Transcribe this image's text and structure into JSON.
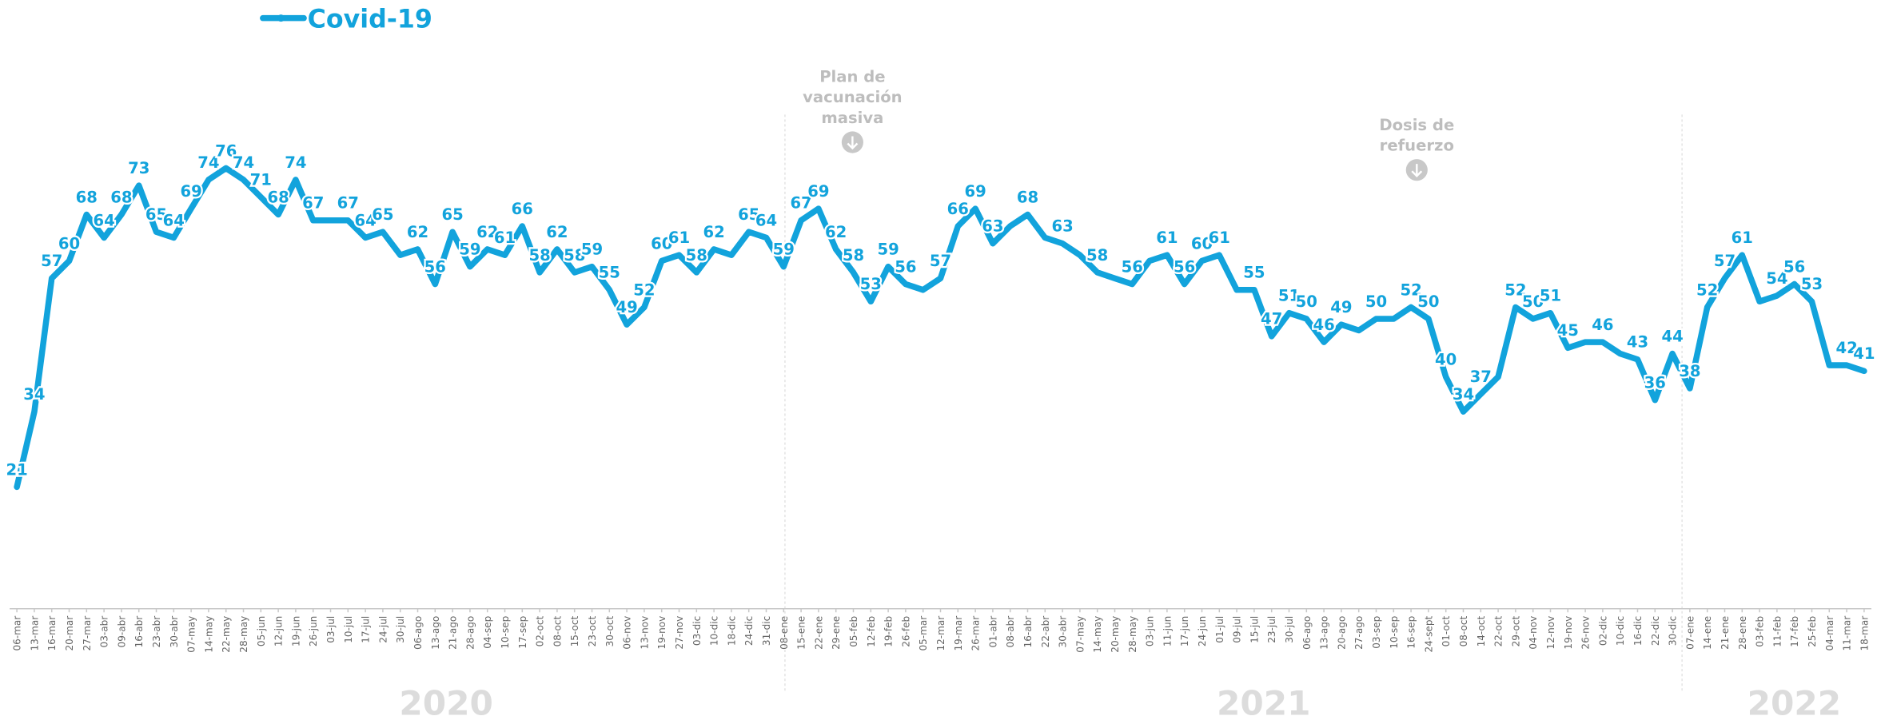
{
  "chart_data": {
    "type": "line",
    "annotations": [
      [
        "Plan de",
        "vacunación",
        "masiva"
      ],
      [
        "Dosis de",
        "refuerzo"
      ]
    ],
    "years": [
      "2020",
      "2021",
      "2022"
    ],
    "categories": [
      "06-mar",
      "13-mar",
      "16-mar",
      "20-mar",
      "27-mar",
      "03-abr",
      "09-abr",
      "16-abr",
      "23-abr",
      "30-abr",
      "07-may",
      "14-may",
      "22-may",
      "28-may",
      "05-jun",
      "12-jun",
      "19-jun",
      "26-jun",
      "03-jul",
      "10-jul",
      "17-jul",
      "24-jul",
      "30-jul",
      "06-ago",
      "13-ago",
      "21-ago",
      "28-ago",
      "04-sep",
      "10-sep",
      "17-sep",
      "02-oct",
      "08-oct",
      "15-oct",
      "23-oct",
      "30-oct",
      "06-nov",
      "13-nov",
      "19-nov",
      "27-nov",
      "03-dic",
      "10-dic",
      "18-dic",
      "24-dic",
      "31-dic",
      "08-ene",
      "15-ene",
      "22-ene",
      "29-ene",
      "05-feb",
      "12-feb",
      "19-feb",
      "26-feb",
      "05-mar",
      "12-mar",
      "19-mar",
      "26-mar",
      "01-abr",
      "08-abr",
      "16-abr",
      "22-abr",
      "30-abr",
      "07-may",
      "14-may",
      "20-may",
      "28-may",
      "03-jun",
      "11-jun",
      "17-jun",
      "24-jun",
      "01-jul",
      "09-jul",
      "15-jul",
      "23-jul",
      "30-jul",
      "06-ago",
      "13-ago",
      "20-ago",
      "27-ago",
      "03-sep",
      "10-sep",
      "16-sep",
      "24-sept",
      "01-oct",
      "08-oct",
      "14-oct",
      "22-oct",
      "29-oct",
      "04-nov",
      "12-nov",
      "19-nov",
      "26-nov",
      "02-dic",
      "10-dic",
      "16-dic",
      "22-dic",
      "30-dic",
      "07-ene",
      "14-ene",
      "21-ene",
      "28-ene",
      "03-feb",
      "11-feb",
      "17-feb",
      "25-feb",
      "04-mar",
      "11-mar",
      "18-mar"
    ],
    "series": [
      {
        "name": "Covid-19",
        "color": "#12a3dc",
        "values": [
          21,
          34,
          57,
          60,
          68,
          64,
          68,
          73,
          65,
          64,
          69,
          74,
          76,
          74,
          71,
          68,
          74,
          67,
          67,
          67,
          64,
          65,
          61,
          62,
          56,
          65,
          59,
          62,
          61,
          66,
          58,
          62,
          58,
          59,
          55,
          49,
          52,
          60,
          61,
          58,
          62,
          61,
          65,
          64,
          59,
          67,
          69,
          62,
          58,
          53,
          59,
          56,
          55,
          57,
          66,
          69,
          63,
          66,
          68,
          64,
          63,
          61,
          58,
          57,
          56,
          60,
          61,
          56,
          60,
          61,
          55,
          55,
          47,
          51,
          50,
          46,
          49,
          48,
          50,
          50,
          52,
          50,
          40,
          34,
          37,
          40,
          52,
          50,
          51,
          45,
          46,
          46,
          44,
          43,
          36,
          44,
          38,
          52,
          57,
          61,
          53,
          54,
          56,
          53,
          42,
          42,
          41
        ],
        "value_labels": [
          "21",
          "34",
          "57",
          "60",
          "68",
          "64",
          "68",
          "73",
          "65",
          "64",
          "69",
          "74",
          "76",
          "74",
          "71",
          "68",
          "74",
          "67",
          null,
          "67",
          "64",
          "65",
          null,
          "62",
          "56",
          "65",
          "59",
          "62",
          "61",
          "66",
          "58",
          "62",
          "58",
          "59",
          "55",
          "49",
          "52",
          "60",
          "61",
          "58",
          "62",
          null,
          "65",
          "64",
          "59",
          "67",
          "69",
          "62",
          "58",
          "53",
          "59",
          "56",
          null,
          "57",
          "66",
          "69",
          "63",
          null,
          "68",
          null,
          "63",
          null,
          "58",
          null,
          "56",
          null,
          "61",
          "56",
          "60",
          "61",
          null,
          "55",
          "47",
          "51",
          "50",
          "46",
          "49",
          null,
          "50",
          null,
          "52",
          "50",
          "40",
          "34",
          "37",
          null,
          "52",
          "50",
          "51",
          "45",
          null,
          "46",
          null,
          "43",
          "36",
          "44",
          "38",
          "52",
          "57",
          "61",
          null,
          "54",
          "56",
          "53",
          null,
          "42",
          "41"
        ]
      }
    ],
    "ylim": [
      0,
      105
    ]
  }
}
